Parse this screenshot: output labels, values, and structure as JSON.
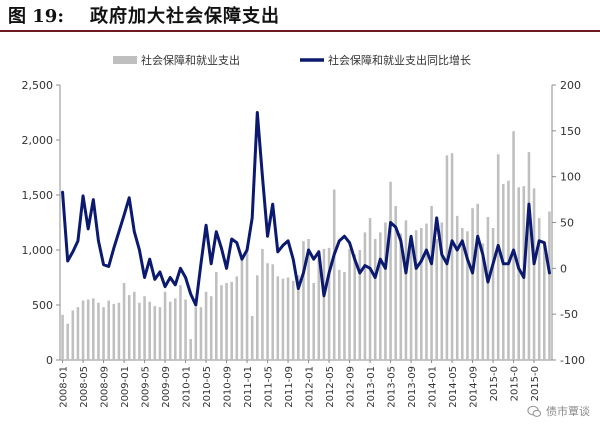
{
  "header": {
    "figure_label": "图  19:",
    "title": "政府加大社会保障支出"
  },
  "watermark": {
    "text": "债市覃谈"
  },
  "colors": {
    "bar": "#bfbfbf",
    "line": "#0b1a6e",
    "axis": "#8c8c8c",
    "text": "#333333",
    "title_rule": "#6e1a23"
  },
  "chart_data": {
    "type": "bar",
    "title": "",
    "legend_position": "top",
    "grid": false,
    "x": [
      "2008-01",
      "2008-02",
      "2008-03",
      "2008-04",
      "2008-05",
      "2008-06",
      "2008-07",
      "2008-08",
      "2008-09",
      "2008-10",
      "2008-11",
      "2008-12",
      "2009-01",
      "2009-02",
      "2009-03",
      "2009-04",
      "2009-05",
      "2009-06",
      "2009-07",
      "2009-08",
      "2009-09",
      "2009-10",
      "2009-11",
      "2009-12",
      "2010-01",
      "2010-02",
      "2010-03",
      "2010-04",
      "2010-05",
      "2010-06",
      "2010-07",
      "2010-08",
      "2010-09",
      "2010-10",
      "2010-11",
      "2010-12",
      "2011-01",
      "2011-02",
      "2011-03",
      "2011-04",
      "2011-05",
      "2011-06",
      "2011-07",
      "2011-08",
      "2011-09",
      "2011-10",
      "2011-11",
      "2011-12",
      "2012-01",
      "2012-02",
      "2012-03",
      "2012-04",
      "2012-05",
      "2012-06",
      "2012-07",
      "2012-08",
      "2012-09",
      "2012-10",
      "2012-11",
      "2012-12",
      "2013-01",
      "2013-02",
      "2013-03",
      "2013-04",
      "2013-05",
      "2013-06",
      "2013-07",
      "2013-08",
      "2013-09",
      "2013-10",
      "2013-11",
      "2013-12",
      "2014-01",
      "2014-02",
      "2014-03",
      "2014-04",
      "2014-05",
      "2014-06",
      "2014-07",
      "2014-08",
      "2014-09",
      "2014-10",
      "2014-11",
      "2014-12",
      "2015-01",
      "2015-02",
      "2015-03",
      "2015-04",
      "2015-05",
      "2015-06",
      "2015-07",
      "2015-08",
      "2015-09",
      "2015-10",
      "2015-11",
      "2015-12"
    ],
    "x_tick_labels": [
      "2008-01",
      "2008-05",
      "2008-09",
      "2009-01",
      "2009-05",
      "2009-09",
      "2010-01",
      "2010-05",
      "2010-09",
      "2011-01",
      "2011-05",
      "2011-09",
      "2012-01",
      "2012-05",
      "2012-09",
      "2013-01",
      "2013-05",
      "2013-09",
      "2014-01",
      "2014-05",
      "2014-09",
      "2015-0",
      "2015-0",
      "2015-0"
    ],
    "y_left": {
      "ylim": [
        0,
        2500
      ],
      "ticks": [
        "0",
        "500",
        "1,000",
        "1,500",
        "2,000",
        "2,500"
      ]
    },
    "y_right": {
      "ylim": [
        -100,
        200
      ],
      "ticks": [
        "-100",
        "-50",
        "0",
        "50",
        "100",
        "150",
        "200"
      ]
    },
    "series": [
      {
        "name": "社会保障和就业支出",
        "axis": "left",
        "type": "bar",
        "values": [
          410,
          330,
          450,
          480,
          540,
          550,
          560,
          520,
          480,
          540,
          510,
          520,
          700,
          590,
          620,
          520,
          580,
          530,
          490,
          480,
          620,
          530,
          560,
          680,
          550,
          190,
          480,
          480,
          620,
          580,
          800,
          680,
          700,
          710,
          760,
          950,
          1030,
          400,
          770,
          1010,
          880,
          870,
          760,
          740,
          750,
          720,
          770,
          1080,
          1100,
          700,
          1000,
          1010,
          1020,
          1550,
          820,
          800,
          1010,
          960,
          1000,
          1160,
          1290,
          1100,
          1160,
          1250,
          1620,
          1400,
          1150,
          1270,
          1120,
          1180,
          1200,
          1240,
          1400,
          1100,
          1250,
          1860,
          1880,
          1310,
          1200,
          1170,
          1380,
          1420,
          1060,
          1300,
          1200,
          1870,
          1600,
          1630,
          2080,
          1570,
          1580,
          1890,
          1560,
          1290,
          1070,
          1350
        ]
      },
      {
        "name": "社会保障和就业支出同比增长",
        "axis": "right",
        "type": "line",
        "values": [
          83,
          8,
          18,
          30,
          79,
          43,
          75,
          30,
          4,
          2,
          22,
          40,
          58,
          77,
          40,
          20,
          -10,
          10,
          -12,
          -4,
          -20,
          -10,
          -18,
          0,
          -10,
          -28,
          -40,
          5,
          47,
          5,
          40,
          22,
          0,
          32,
          28,
          10,
          20,
          55,
          170,
          100,
          35,
          70,
          18,
          25,
          30,
          10,
          -22,
          -5,
          20,
          10,
          18,
          -30,
          -5,
          15,
          30,
          35,
          28,
          10,
          -5,
          3,
          0,
          -10,
          10,
          0,
          50,
          45,
          30,
          -5,
          35,
          0,
          8,
          20,
          5,
          55,
          15,
          5,
          30,
          20,
          30,
          10,
          -5,
          35,
          15,
          -15,
          5,
          25,
          5,
          5,
          20,
          0,
          -10,
          70,
          5,
          30,
          28,
          -5
        ]
      }
    ]
  }
}
